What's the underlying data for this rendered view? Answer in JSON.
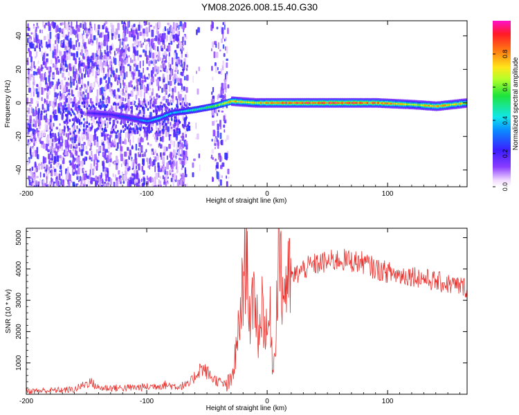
{
  "figure": {
    "title": "YM08.2026.008.15.40.G30"
  },
  "colors": {
    "snr_line": "#e8302c",
    "ridge_core": "#d8254a",
    "background": "#ffffff"
  },
  "chart_data": [
    {
      "type": "heatmap",
      "xlabel": "Height of straight line (km)",
      "ylabel": "Frequency (Hz)",
      "xlim": [
        -200,
        166
      ],
      "ylim": [
        -50,
        49
      ],
      "xticks": [
        -200,
        -100,
        0,
        100
      ],
      "yticks": [
        -40,
        -20,
        0,
        20,
        40
      ],
      "colorbar": {
        "label": "Normalized spectral amplitude",
        "range": [
          0,
          1
        ],
        "ticks": [
          0.0,
          0.2,
          0.4,
          0.6,
          0.8
        ],
        "tick_labels": [
          "0.0",
          "0.2",
          "0.4",
          "0.6",
          "0.8"
        ],
        "colormap": "rainbow (white → purple → blue → cyan → green → yellow → orange → red → magenta)"
      },
      "regions": [
        {
          "x": [
            -200,
            -65
          ],
          "description": "broadband scattered noise, amplitude 0.05–0.25"
        },
        {
          "x": [
            -65,
            -30
          ],
          "description": "sparse noise columns"
        },
        {
          "x": [
            -30,
            166
          ],
          "description": "clean signal ridge near 0 Hz, no noise"
        }
      ],
      "ridge": [
        {
          "x": -150,
          "y": -6,
          "amp": 0.22
        },
        {
          "x": -130,
          "y": -7,
          "amp": 0.25
        },
        {
          "x": -100,
          "y": -11,
          "amp": 0.4
        },
        {
          "x": -90,
          "y": -9,
          "amp": 0.45
        },
        {
          "x": -80,
          "y": -6,
          "amp": 0.42
        },
        {
          "x": -60,
          "y": -4,
          "amp": 0.55
        },
        {
          "x": -45,
          "y": -2,
          "amp": 0.6
        },
        {
          "x": -30,
          "y": 1,
          "amp": 0.85
        },
        {
          "x": -10,
          "y": 0,
          "amp": 0.8
        },
        {
          "x": 10,
          "y": 0,
          "amp": 1.0
        },
        {
          "x": 50,
          "y": 0,
          "amp": 1.0
        },
        {
          "x": 90,
          "y": 0,
          "amp": 0.95
        },
        {
          "x": 120,
          "y": -1,
          "amp": 0.7
        },
        {
          "x": 140,
          "y": -2,
          "amp": 0.9
        },
        {
          "x": 166,
          "y": 0,
          "amp": 0.75
        }
      ]
    },
    {
      "type": "line",
      "xlabel": "Height of straight line (km)",
      "ylabel": "SNR (10 * v/v)",
      "xlim": [
        -200,
        166
      ],
      "ylim": [
        0,
        5300
      ],
      "xticks": [
        -200,
        -100,
        0,
        100
      ],
      "yticks": [
        1000,
        2000,
        3000,
        4000,
        5000
      ],
      "series": [
        {
          "x": [
            -200,
            -180,
            -160,
            -147,
            -140,
            -120,
            -100,
            -85,
            -75,
            -65,
            -55,
            -50,
            -45,
            -35,
            -30,
            -25,
            -20,
            -17,
            -14,
            -10,
            -7,
            -4,
            -1,
            3,
            5,
            8,
            10,
            12,
            15,
            20,
            30,
            40,
            60,
            80,
            90,
            100,
            110,
            120,
            140,
            160,
            166
          ],
          "y": [
            100,
            120,
            150,
            400,
            200,
            200,
            230,
            300,
            250,
            300,
            850,
            700,
            500,
            300,
            350,
            1500,
            3500,
            4700,
            2200,
            3200,
            1800,
            3000,
            1800,
            2500,
            500,
            3000,
            5300,
            3200,
            3500,
            3700,
            4000,
            4150,
            4300,
            4200,
            4000,
            3900,
            3800,
            3800,
            3600,
            3450,
            3400
          ]
        }
      ]
    }
  ]
}
